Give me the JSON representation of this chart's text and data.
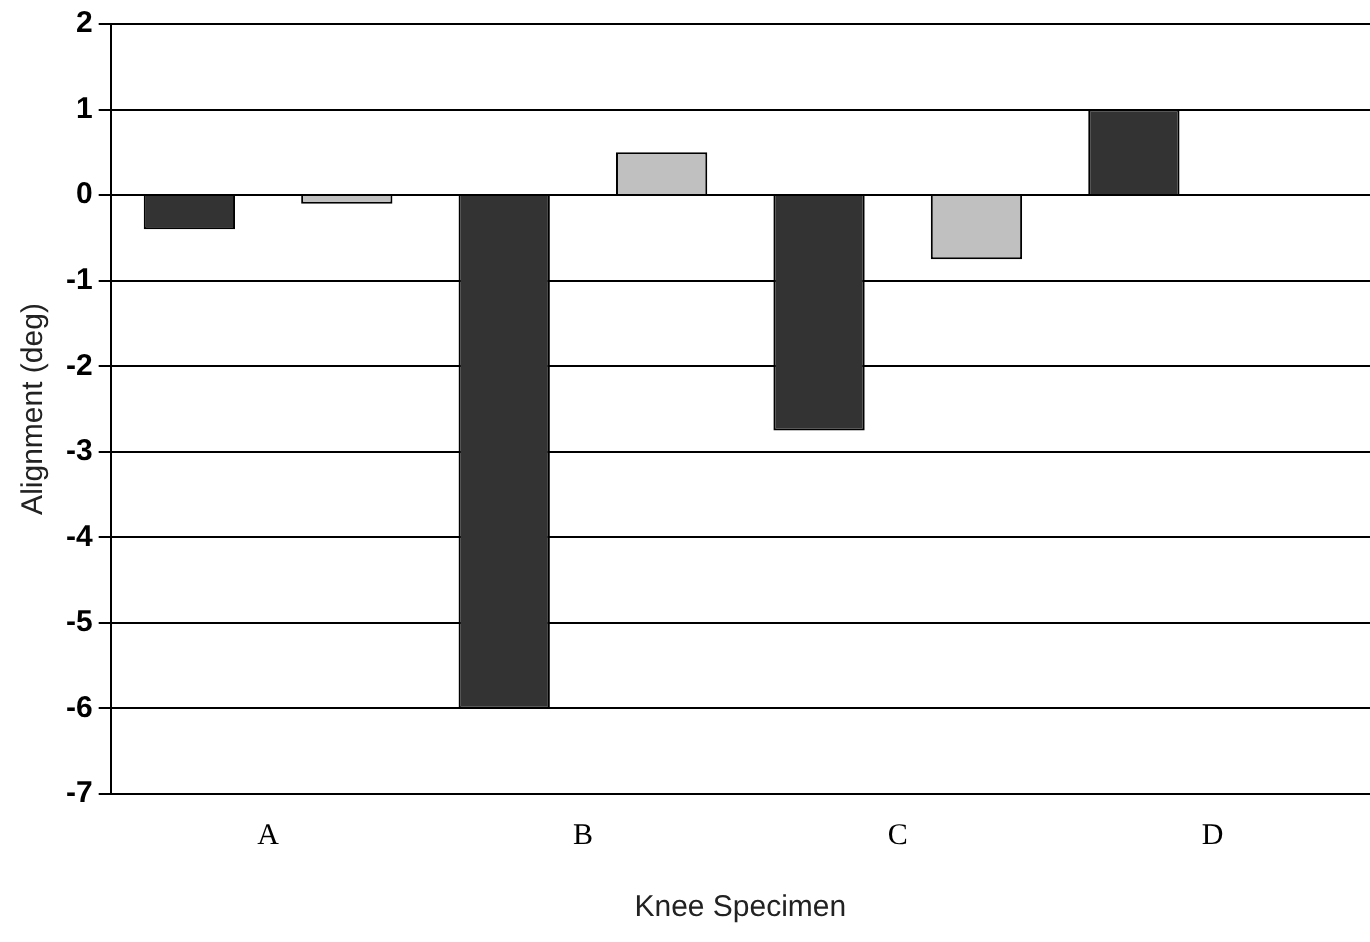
{
  "chart_data": {
    "type": "bar",
    "xlabel": "Knee Specimen",
    "ylabel": "Alignment (deg)",
    "categories": [
      "A",
      "B",
      "C",
      "D"
    ],
    "series": [
      {
        "color": "#333333",
        "values": [
          -0.4,
          -6,
          -2.75,
          1
        ]
      },
      {
        "color": "#c0c0c0",
        "values": [
          -0.1,
          0.5,
          -0.75,
          null
        ]
      }
    ],
    "ylim": [
      -7,
      2
    ],
    "yticks": [
      -7,
      -6,
      -5,
      -4,
      -3,
      -2,
      -1,
      0,
      1,
      2
    ],
    "grid": "y",
    "legend": false
  }
}
